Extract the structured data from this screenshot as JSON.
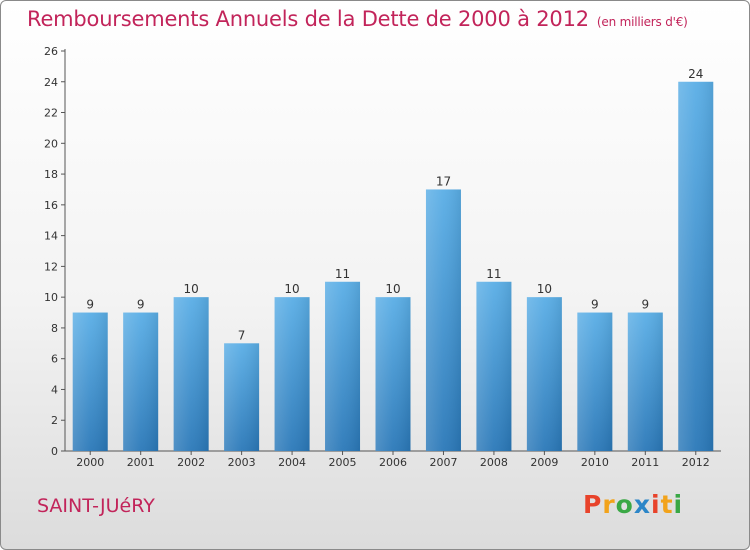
{
  "header": {
    "title": "Remboursements Annuels de la Dette de 2000 à 2012",
    "unit": "(en milliers d'€)"
  },
  "footer": {
    "commune": "SAINT-JUéRY",
    "logo_text": "Proxiti"
  },
  "chart_data": {
    "type": "bar",
    "title": "Remboursements Annuels de la Dette de 2000 à 2012",
    "subtitle": "(en milliers d'€)",
    "xlabel": "",
    "ylabel": "",
    "categories": [
      "2000",
      "2001",
      "2002",
      "2003",
      "2004",
      "2005",
      "2006",
      "2007",
      "2008",
      "2009",
      "2010",
      "2011",
      "2012"
    ],
    "values": [
      9,
      9,
      10,
      7,
      10,
      11,
      10,
      17,
      11,
      10,
      9,
      9,
      24
    ],
    "ylim": [
      0,
      26
    ],
    "yticks": [
      0,
      2,
      4,
      6,
      8,
      10,
      12,
      14,
      16,
      18,
      20,
      22,
      24,
      26
    ],
    "grid": false,
    "legend": "none",
    "bar_color_top": "#5aaee6",
    "bar_color_bottom": "#2a78b8"
  },
  "colors": {
    "title": "#c2245a",
    "logo": [
      "#e8432b",
      "#f2a31b",
      "#3aa845",
      "#2c86c8",
      "#e8432b",
      "#f2a31b",
      "#3aa845"
    ]
  }
}
